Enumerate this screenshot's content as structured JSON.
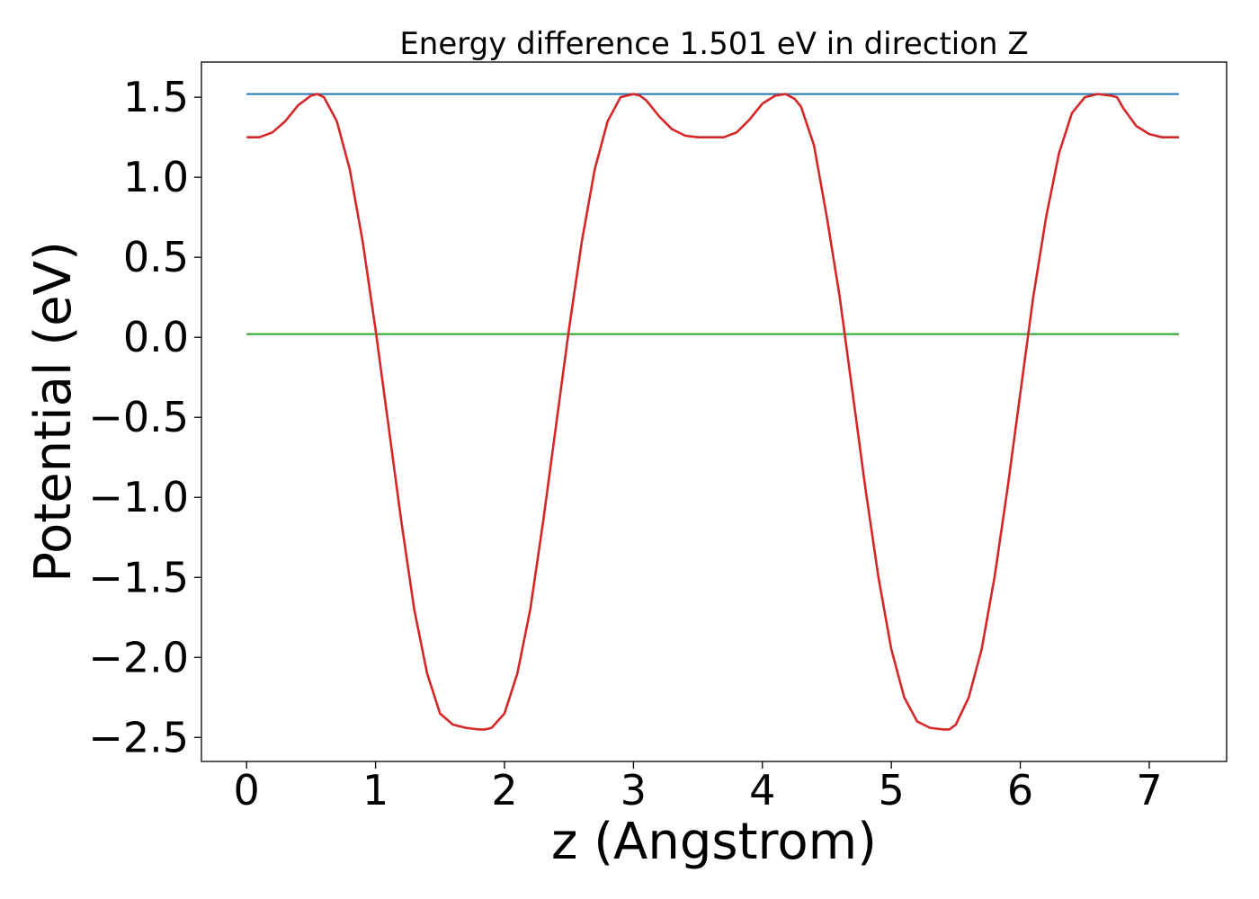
{
  "chart_data": {
    "type": "line",
    "title": "Energy difference 1.501 eV in direction Z",
    "xlabel": "z (Angstrom)",
    "ylabel": "Potential (eV)",
    "xlim": [
      -0.35,
      7.6
    ],
    "ylim": [
      -2.65,
      1.72
    ],
    "x_ticks": [
      0,
      1,
      2,
      3,
      4,
      5,
      6,
      7
    ],
    "x_tick_labels": [
      "0",
      "1",
      "2",
      "3",
      "4",
      "5",
      "6",
      "7"
    ],
    "y_ticks": [
      1.5,
      1.0,
      0.5,
      0.0,
      -0.5,
      -1.0,
      -1.5,
      -2.0,
      -2.5
    ],
    "y_tick_labels": [
      "1.5",
      "1.0",
      "0.5",
      "0.0",
      "−0.5",
      "−1.0",
      "−1.5",
      "−2.0",
      "−2.5"
    ],
    "grid": false,
    "series": [
      {
        "color": "#d62728",
        "x": [
          0.0,
          0.1,
          0.2,
          0.3,
          0.4,
          0.5,
          0.55,
          0.6,
          0.7,
          0.8,
          0.9,
          1.0,
          1.1,
          1.2,
          1.3,
          1.4,
          1.5,
          1.6,
          1.7,
          1.8,
          1.85,
          1.9,
          2.0,
          2.1,
          2.2,
          2.3,
          2.4,
          2.5,
          2.6,
          2.7,
          2.8,
          2.9,
          3.0,
          3.05,
          3.1,
          3.2,
          3.3,
          3.4,
          3.5,
          3.6,
          3.7,
          3.8,
          3.9,
          4.0,
          4.1,
          4.18,
          4.25,
          4.3,
          4.4,
          4.5,
          4.6,
          4.7,
          4.8,
          4.9,
          5.0,
          5.1,
          5.2,
          5.3,
          5.4,
          5.45,
          5.5,
          5.6,
          5.7,
          5.8,
          5.9,
          6.0,
          6.1,
          6.2,
          6.3,
          6.4,
          6.5,
          6.6,
          6.7,
          6.75,
          6.8,
          6.9,
          7.0,
          7.1,
          7.2,
          7.23
        ],
        "y": [
          1.25,
          1.25,
          1.28,
          1.35,
          1.45,
          1.51,
          1.52,
          1.5,
          1.35,
          1.05,
          0.6,
          0.05,
          -0.55,
          -1.15,
          -1.7,
          -2.1,
          -2.35,
          -2.42,
          -2.44,
          -2.45,
          -2.45,
          -2.44,
          -2.35,
          -2.1,
          -1.7,
          -1.15,
          -0.55,
          0.05,
          0.6,
          1.05,
          1.35,
          1.5,
          1.52,
          1.51,
          1.48,
          1.38,
          1.3,
          1.26,
          1.25,
          1.25,
          1.25,
          1.28,
          1.36,
          1.46,
          1.51,
          1.52,
          1.49,
          1.44,
          1.2,
          0.75,
          0.25,
          -0.35,
          -0.95,
          -1.5,
          -1.95,
          -2.25,
          -2.4,
          -2.44,
          -2.45,
          -2.45,
          -2.42,
          -2.25,
          -1.95,
          -1.5,
          -0.95,
          -0.35,
          0.25,
          0.75,
          1.15,
          1.4,
          1.5,
          1.52,
          1.51,
          1.5,
          1.43,
          1.32,
          1.27,
          1.25,
          1.25,
          1.25
        ]
      },
      {
        "color": "#1f77b4",
        "x": [
          0.0,
          7.23
        ],
        "y": [
          1.52,
          1.52
        ]
      },
      {
        "color": "#2ca02c",
        "x": [
          0.0,
          7.23
        ],
        "y": [
          0.02,
          0.02
        ]
      }
    ]
  }
}
